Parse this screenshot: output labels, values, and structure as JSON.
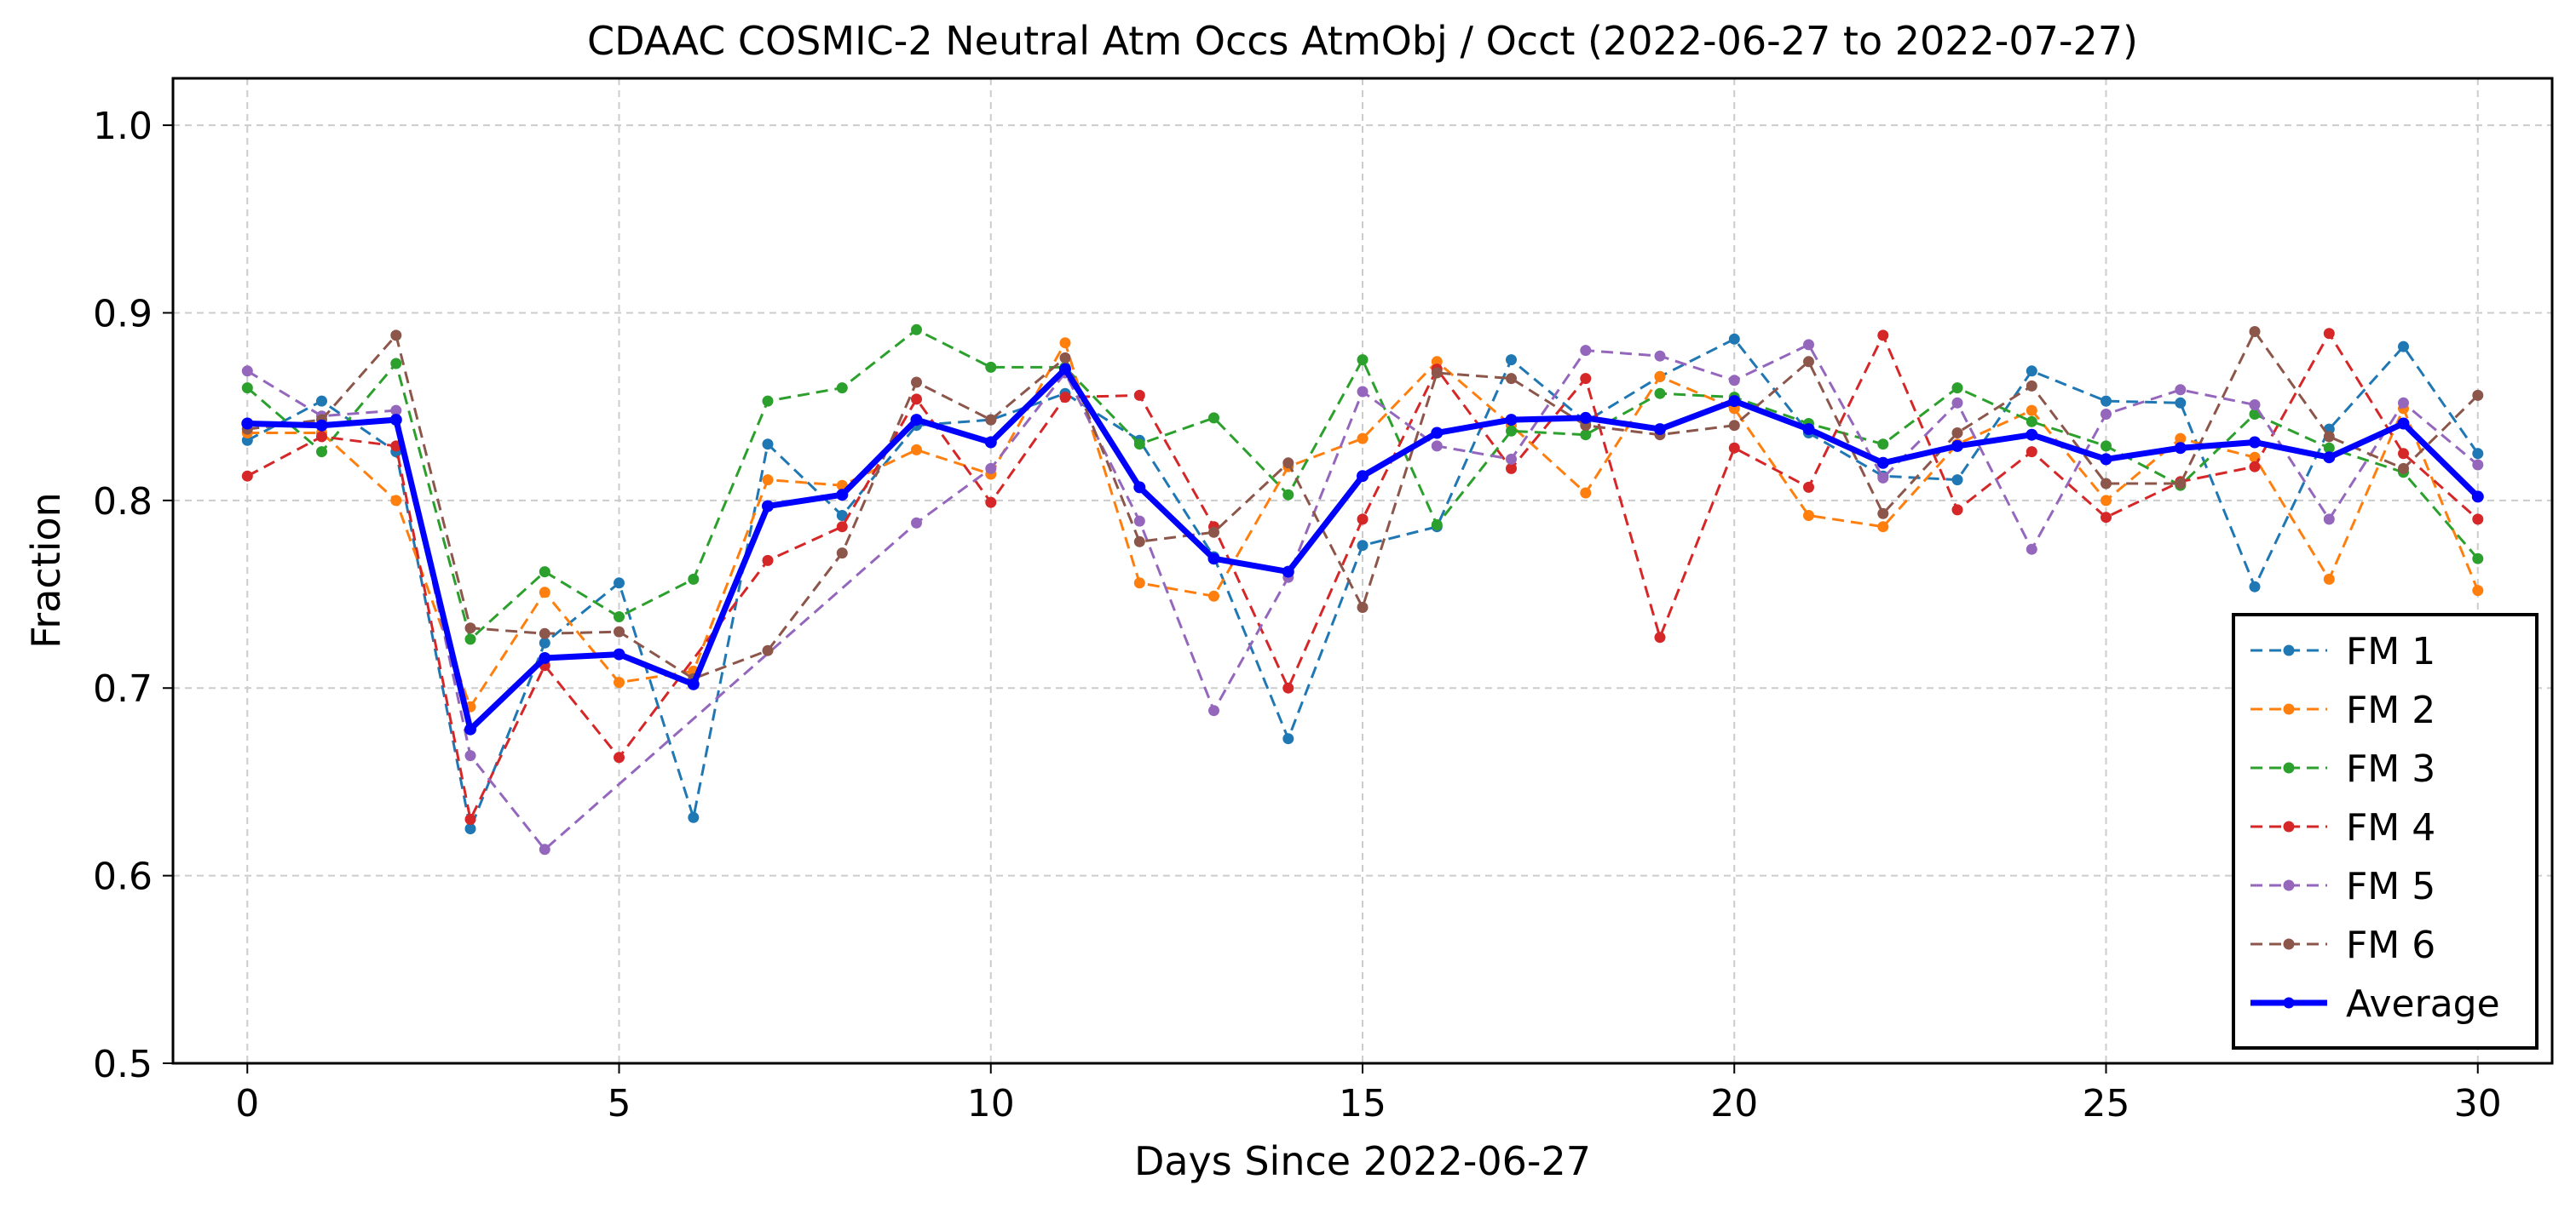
{
  "chart_data": {
    "type": "line",
    "title": "CDAAC COSMIC-2 Neutral Atm Occs AtmObj / Occt (2022-06-27 to 2022-07-27)",
    "xlabel": "Days Since 2022-06-27",
    "ylabel": "Fraction",
    "xlim": [
      -1,
      31
    ],
    "ylim": [
      0.5,
      1.025
    ],
    "xticks": [
      0,
      5,
      10,
      15,
      20,
      25,
      30
    ],
    "yticks": [
      0.5,
      0.6,
      0.7,
      0.8,
      0.9,
      1.0
    ],
    "xtick_labels": [
      "0",
      "5",
      "10",
      "15",
      "20",
      "25",
      "30"
    ],
    "ytick_labels": [
      "0.5",
      "0.6",
      "0.7",
      "0.8",
      "0.9",
      "1.0"
    ],
    "grid": true,
    "legend_position": "lower-right",
    "series": [
      {
        "name": "FM 1",
        "color": "#1f77b4",
        "style": "dashed",
        "x": [
          0,
          1,
          2,
          3,
          4,
          5,
          6,
          7,
          8,
          9,
          10,
          11,
          12,
          13,
          14,
          15,
          16,
          17,
          18,
          19,
          20,
          21,
          22,
          23,
          24,
          25,
          26,
          27,
          28,
          29,
          30
        ],
        "values": [
          0.832,
          0.853,
          0.826,
          0.625,
          0.724,
          0.756,
          0.631,
          0.83,
          0.792,
          0.84,
          0.843,
          0.857,
          0.832,
          0.77,
          0.673,
          0.776,
          0.786,
          0.875,
          0.842,
          0.866,
          0.886,
          0.836,
          0.813,
          0.811,
          0.869,
          0.853,
          0.852,
          0.754,
          0.838,
          0.882,
          0.825
        ]
      },
      {
        "name": "FM 2",
        "color": "#ff7f0e",
        "style": "dashed",
        "x": [
          0,
          1,
          2,
          3,
          4,
          5,
          6,
          7,
          8,
          9,
          10,
          11,
          12,
          13,
          14,
          15,
          16,
          17,
          18,
          19,
          20,
          21,
          22,
          23,
          24,
          25,
          26,
          27,
          28,
          29,
          30
        ],
        "values": [
          0.836,
          0.836,
          0.8,
          0.69,
          0.751,
          0.703,
          0.709,
          0.811,
          0.808,
          0.827,
          0.814,
          0.884,
          0.756,
          0.749,
          0.818,
          0.833,
          0.874,
          0.84,
          0.804,
          0.866,
          0.849,
          0.792,
          0.786,
          0.83,
          0.848,
          0.8,
          0.833,
          0.823,
          0.758,
          0.849,
          0.752
        ]
      },
      {
        "name": "FM 3",
        "color": "#2ca02c",
        "style": "dashed",
        "x": [
          0,
          1,
          2,
          3,
          4,
          5,
          6,
          7,
          8,
          9,
          10,
          11,
          12,
          13,
          14,
          15,
          16,
          17,
          18,
          19,
          20,
          21,
          22,
          23,
          24,
          25,
          26,
          27,
          28,
          29,
          30
        ],
        "values": [
          0.86,
          0.826,
          0.873,
          0.726,
          0.762,
          0.738,
          0.758,
          0.853,
          0.86,
          0.891,
          0.871,
          0.871,
          0.83,
          0.844,
          0.803,
          0.875,
          0.787,
          0.837,
          0.835,
          0.857,
          0.855,
          0.841,
          0.83,
          0.86,
          0.842,
          0.829,
          0.808,
          0.846,
          0.828,
          0.815,
          0.769
        ]
      },
      {
        "name": "FM 4",
        "color": "#d62728",
        "style": "dashed",
        "x": [
          0,
          1,
          2,
          3,
          4,
          5,
          7,
          8,
          9,
          10,
          11,
          12,
          13,
          14,
          15,
          16,
          17,
          18,
          19,
          20,
          21,
          22,
          23,
          24,
          25,
          26,
          27,
          28,
          29,
          30
        ],
        "values": [
          0.813,
          0.834,
          0.829,
          0.63,
          0.712,
          0.663,
          0.768,
          0.786,
          0.854,
          0.799,
          0.855,
          0.856,
          0.786,
          0.7,
          0.79,
          0.87,
          0.817,
          0.865,
          0.727,
          0.828,
          0.807,
          0.888,
          0.795,
          0.826,
          0.791,
          0.81,
          0.818,
          0.889,
          0.825,
          0.79
        ]
      },
      {
        "name": "FM 5",
        "color": "#9467bd",
        "style": "dashed",
        "x": [
          0,
          1,
          2,
          3,
          4,
          9,
          10,
          11,
          12,
          13,
          14,
          15,
          16,
          17,
          18,
          19,
          20,
          21,
          22,
          23,
          24,
          25,
          26,
          27,
          28,
          29,
          30
        ],
        "values": [
          0.869,
          0.845,
          0.848,
          0.664,
          0.614,
          0.788,
          0.817,
          0.868,
          0.789,
          0.688,
          0.759,
          0.858,
          0.829,
          0.822,
          0.88,
          0.877,
          0.864,
          0.883,
          0.812,
          0.852,
          0.774,
          0.846,
          0.859,
          0.851,
          0.79,
          0.852,
          0.819
        ]
      },
      {
        "name": "FM 6",
        "color": "#8c564b",
        "style": "dashed",
        "x": [
          0,
          1,
          2,
          3,
          4,
          5,
          6,
          7,
          8,
          9,
          10,
          11,
          12,
          13,
          14,
          15,
          16,
          17,
          18,
          19,
          20,
          21,
          22,
          23,
          24,
          25,
          26,
          27,
          28,
          29,
          30
        ],
        "values": [
          0.838,
          0.843,
          0.888,
          0.732,
          0.729,
          0.73,
          0.705,
          0.72,
          0.772,
          0.863,
          0.843,
          0.876,
          0.778,
          0.783,
          0.82,
          0.743,
          0.868,
          0.865,
          0.84,
          0.835,
          0.84,
          0.874,
          0.793,
          0.836,
          0.861,
          0.809,
          0.809,
          0.89,
          0.834,
          0.817,
          0.856
        ]
      },
      {
        "name": "Average",
        "color": "#0000ff",
        "style": "solid",
        "x": [
          0,
          1,
          2,
          3,
          4,
          5,
          6,
          7,
          8,
          9,
          10,
          11,
          12,
          13,
          14,
          15,
          16,
          17,
          18,
          19,
          20,
          21,
          22,
          23,
          24,
          25,
          26,
          27,
          28,
          29,
          30
        ],
        "values": [
          0.841,
          0.84,
          0.843,
          0.678,
          0.716,
          0.718,
          0.702,
          0.797,
          0.803,
          0.843,
          0.831,
          0.87,
          0.807,
          0.769,
          0.762,
          0.813,
          0.836,
          0.843,
          0.844,
          0.838,
          0.853,
          0.838,
          0.82,
          0.829,
          0.835,
          0.822,
          0.828,
          0.831,
          0.823,
          0.841,
          0.802
        ]
      }
    ]
  }
}
